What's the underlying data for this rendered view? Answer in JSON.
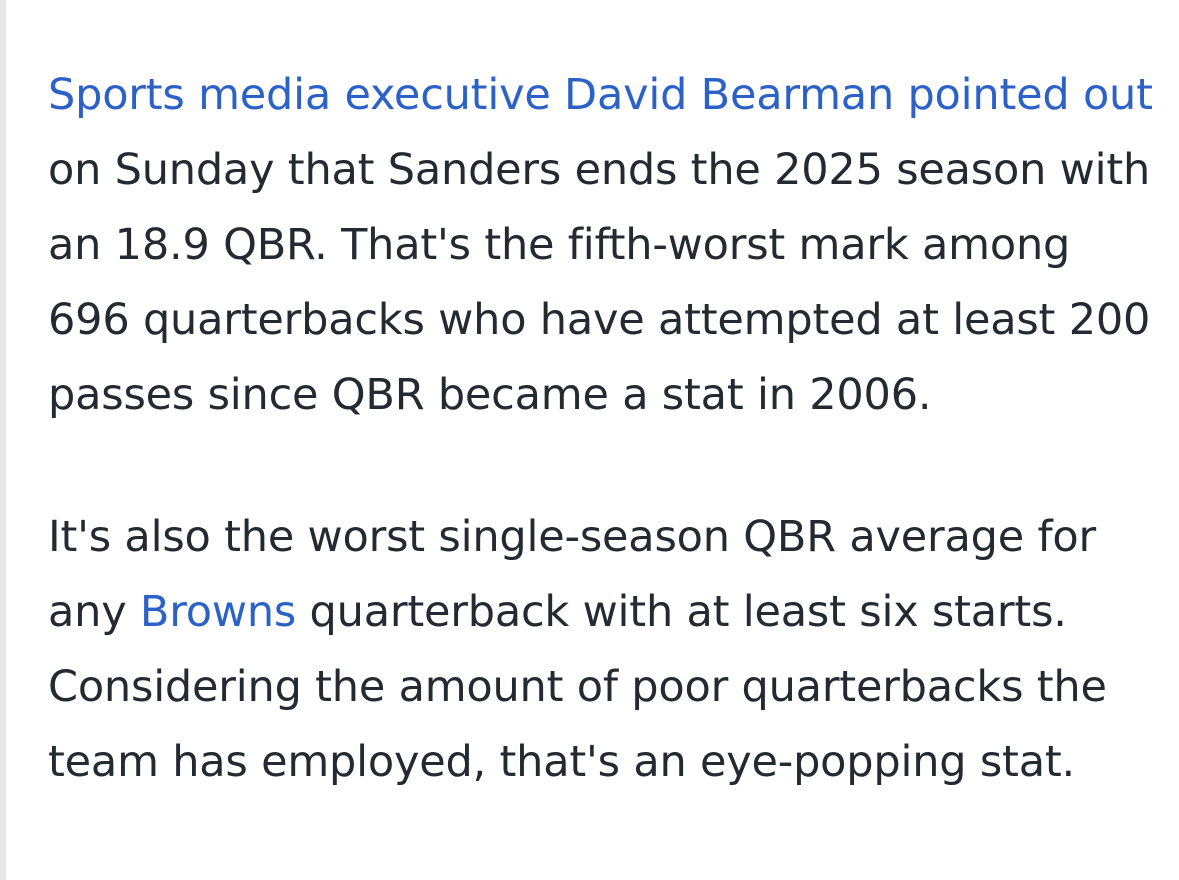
{
  "article": {
    "paragraph_1": {
      "link": "Sports media executive David Bearman pointed out",
      "text": " on Sunday that Sanders ends the 2025 season with an 18.9 QBR. That's the fifth-worst mark among 696 quarterbacks who have attempted at least 200 passes since QBR became a stat in 2006."
    },
    "paragraph_2": {
      "text_before": "It's also the worst single-season QBR average for any ",
      "link": "Browns",
      "text_after": " quarterback with at least six starts. Considering the amount of poor quarterbacks the team has employed, that's an eye-popping stat."
    }
  },
  "colors": {
    "link": "#2c62c8",
    "body_text": "#232a31",
    "background": "#ffffff"
  }
}
